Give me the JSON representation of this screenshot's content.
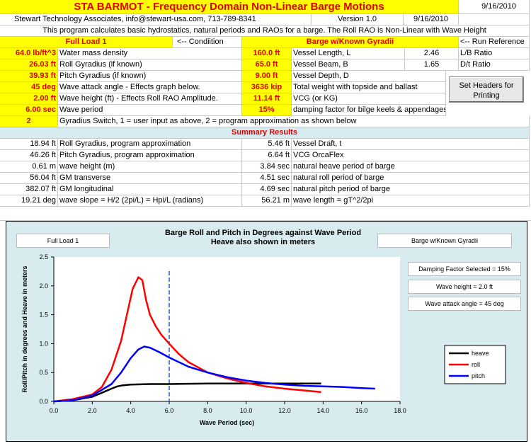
{
  "header": {
    "title": "STA BARMOT - Frequency Domain Non-Linear Barge Motions",
    "date_top": "9/16/2010",
    "company": "Stewart Technology Associates, info@stewart-usa.com, 713-789-8341",
    "version": "Version 1.0",
    "version_date": "9/16/2010",
    "description": "This program calculates basic hydrostatics, natural periods and RAOs for a barge.  The Roll RAO is Non-Linear with Wave Height"
  },
  "condition": {
    "load_label": "Full Load 1",
    "load_note": "<-- Condiition",
    "barge_label": "Barge w/Known Gyradii",
    "barge_note": "<-- Run Reference"
  },
  "inputs_left": [
    {
      "value": "64.0 lb/ft^3",
      "label": "Water mass density"
    },
    {
      "value": "26.03 ft",
      "label": "Roll Gyradius (if known)"
    },
    {
      "value": "39.93 ft",
      "label": "Pitch Gyradius (if known)"
    },
    {
      "value": "45 deg",
      "label": "Wave attack angle - Effects graph below."
    },
    {
      "value": "2.00 ft",
      "label": "Wave height (ft) - Effects Roll RAO Amplitude."
    },
    {
      "value": "6.00 sec",
      "label": "Wave period"
    }
  ],
  "inputs_right": [
    {
      "value": "160.0 ft",
      "label": "Vessel Length, L",
      "ratio": "2.46",
      "ratio_label": "L/B Ratio"
    },
    {
      "value": "65.0 ft",
      "label": "Vessel Beam, B",
      "ratio": "1.65",
      "ratio_label": "D/t Ratio"
    },
    {
      "value": "9.00 ft",
      "label": "Vessel Depth, D",
      "ratio": "",
      "ratio_label": ""
    },
    {
      "value": "3636 kip",
      "label": "Total weight with topside and ballast",
      "ratio": "",
      "ratio_label": ""
    },
    {
      "value": "11.14 ft",
      "label": "VCG (or KG)",
      "ratio": "",
      "ratio_label": ""
    },
    {
      "value": "15%",
      "label": "damping factor for bilge keels & appendages",
      "ratio": "",
      "ratio_label": ""
    }
  ],
  "switch": {
    "value": "2",
    "label": "Gyradius Switch, 1 = user input as above, 2 = program approximation as shown below"
  },
  "button_label": "Set Headers for Printing",
  "summary": {
    "title": "Summary Results",
    "rows": [
      {
        "lval": "18.94 ft",
        "llabel": "Roll Gyradius, program approximation",
        "rval": "5.46 ft",
        "rlabel": "Vessel Draft, t"
      },
      {
        "lval": "46.26 ft",
        "llabel": "Pitch Gyradius, program approximation",
        "rval": "6.64 ft",
        "rlabel": "VCG OrcaFlex"
      },
      {
        "lval": "0.61 m",
        "llabel": "wave height (m)",
        "rval": "3.84 sec",
        "rlabel": "natural heave period of barge"
      },
      {
        "lval": "56.04 ft",
        "llabel": "GM transverse",
        "rval": "4.51 sec",
        "rlabel": "natural roll period of barge"
      },
      {
        "lval": "382.07 ft",
        "llabel": "GM longitudinal",
        "rval": "4.69 sec",
        "rlabel": "natural pitch period of barge"
      },
      {
        "lval": "19.21 deg",
        "llabel": "wave slope = H/2 (2pi/L) = Hpi/L (radians)",
        "rval": "56.21 m",
        "rlabel": "wave length = gT^2/2pi"
      }
    ]
  },
  "chart_data": {
    "type": "line",
    "title": "Barge Roll and Pitch in Degrees against Wave Period",
    "subtitle": "Heave also shown in meters",
    "xlabel": "Wave Period (sec)",
    "ylabel": "Roll/Pitch in degrees and Heave in meters",
    "xlim": [
      0,
      18
    ],
    "ylim": [
      0,
      2.5
    ],
    "xticks": [
      "0.0",
      "2.0",
      "4.0",
      "6.0",
      "8.0",
      "10.0",
      "12.0",
      "14.0",
      "16.0",
      "18.0"
    ],
    "yticks": [
      "0.0",
      "0.5",
      "1.0",
      "1.5",
      "2.0",
      "2.5"
    ],
    "marker_x": 6.0,
    "left_box": "Full Load 1",
    "right_box": "Barge w/Known Gyradii",
    "notes": [
      "Damping Factor Selected = 15%",
      "Wave height = 2.0 ft",
      "Wave attack angle = 45 deg"
    ],
    "legend_position": "right",
    "series": [
      {
        "name": "heave",
        "color": "#000000",
        "x": [
          0,
          1,
          2,
          2.5,
          3,
          3.3,
          3.6,
          4,
          5,
          6,
          8,
          10,
          12,
          13.9
        ],
        "y": [
          0,
          0.02,
          0.08,
          0.15,
          0.22,
          0.26,
          0.28,
          0.29,
          0.3,
          0.3,
          0.31,
          0.31,
          0.31,
          0.31
        ]
      },
      {
        "name": "roll",
        "color": "#ff0000",
        "x": [
          0,
          1,
          2,
          2.5,
          3,
          3.5,
          3.8,
          4.1,
          4.4,
          4.6,
          4.8,
          5,
          5.3,
          5.6,
          6,
          6.5,
          7,
          8,
          9,
          10,
          11,
          12,
          13,
          13.9
        ],
        "y": [
          0,
          0.04,
          0.12,
          0.25,
          0.55,
          1.05,
          1.5,
          1.95,
          2.15,
          2.1,
          1.75,
          1.5,
          1.3,
          1.15,
          1.0,
          0.82,
          0.68,
          0.5,
          0.4,
          0.32,
          0.26,
          0.22,
          0.19,
          0.16
        ]
      },
      {
        "name": "pitch",
        "color": "#0000ff",
        "x": [
          0,
          1,
          2,
          3,
          3.5,
          4,
          4.4,
          4.7,
          5,
          5.5,
          6,
          7,
          8,
          9,
          10,
          11,
          12,
          13,
          14,
          15,
          16,
          16.7
        ],
        "y": [
          0,
          0.02,
          0.1,
          0.3,
          0.5,
          0.75,
          0.9,
          0.95,
          0.93,
          0.85,
          0.76,
          0.6,
          0.5,
          0.42,
          0.36,
          0.32,
          0.29,
          0.27,
          0.26,
          0.25,
          0.23,
          0.22
        ]
      }
    ]
  }
}
